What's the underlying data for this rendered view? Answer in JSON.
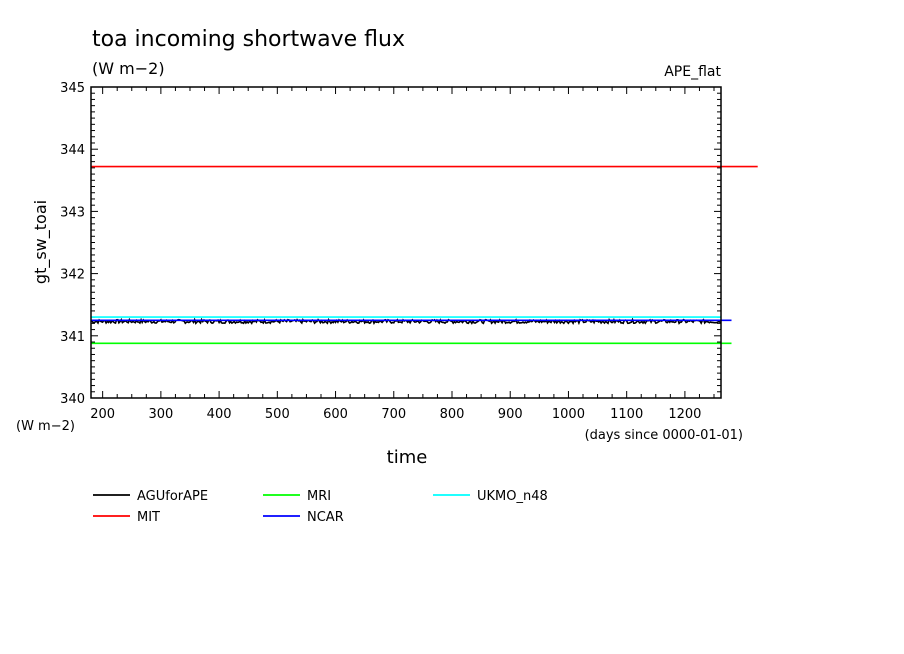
{
  "chart_data": {
    "type": "line",
    "title": "toa incoming shortwave flux",
    "subtitle": "(W m−2)",
    "tag": "APE_flat",
    "ylabel": "gt_sw_toai",
    "y_units": "(W m−2)",
    "xlabel": "time",
    "x_units": "(days since 0000-01-01)",
    "xlim": [
      180,
      1262
    ],
    "ylim": [
      340,
      345
    ],
    "x_ticks": [
      200,
      300,
      400,
      500,
      600,
      700,
      800,
      900,
      1000,
      1100,
      1200
    ],
    "y_ticks": [
      340,
      341,
      342,
      343,
      344,
      345
    ],
    "grid": false,
    "legend_position": "bottom",
    "series": [
      {
        "name": "AGUforAPE",
        "color": "#000000",
        "x": [
          180,
          1262
        ],
        "y": [
          341.24,
          341.24
        ],
        "noise": 0.03
      },
      {
        "name": "MIT",
        "color": "#ff0000",
        "x": [
          180,
          1325
        ],
        "y": [
          343.72,
          343.72
        ]
      },
      {
        "name": "MRI",
        "color": "#00ff00",
        "x": [
          180,
          1280
        ],
        "y": [
          340.88,
          340.88
        ]
      },
      {
        "name": "NCAR",
        "color": "#0000ff",
        "x": [
          180,
          1280
        ],
        "y": [
          341.25,
          341.25
        ]
      },
      {
        "name": "UKMO_n48",
        "color": "#00ffff",
        "x": [
          180,
          1262
        ],
        "y": [
          341.3,
          341.3
        ]
      }
    ]
  }
}
